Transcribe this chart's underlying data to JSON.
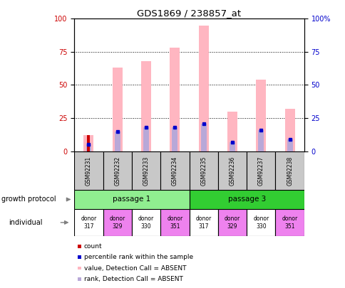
{
  "title": "GDS1869 / 238857_at",
  "samples": [
    "GSM92231",
    "GSM92232",
    "GSM92233",
    "GSM92234",
    "GSM92235",
    "GSM92236",
    "GSM92237",
    "GSM92238"
  ],
  "absent_value_bars": [
    12,
    63,
    68,
    78,
    95,
    30,
    54,
    32
  ],
  "absent_rank_bars": [
    5,
    15,
    18,
    18,
    21,
    7,
    16,
    9
  ],
  "red_count_bars": [
    12,
    0,
    0,
    0,
    0,
    0,
    0,
    0
  ],
  "blue_rank_dots": [
    5,
    15,
    18,
    18,
    21,
    7,
    16,
    9
  ],
  "passage_groups": [
    {
      "label": "passage 1",
      "start": 0,
      "end": 4,
      "color": "#90ee90"
    },
    {
      "label": "passage 3",
      "start": 4,
      "end": 8,
      "color": "#32cd32"
    }
  ],
  "individuals": [
    {
      "label": "donor\n317",
      "bg": "#ffffff"
    },
    {
      "label": "donor\n329",
      "bg": "#ee82ee"
    },
    {
      "label": "donor\n330",
      "bg": "#ffffff"
    },
    {
      "label": "donor\n351",
      "bg": "#ee82ee"
    },
    {
      "label": "donor\n317",
      "bg": "#ffffff"
    },
    {
      "label": "donor\n329",
      "bg": "#ee82ee"
    },
    {
      "label": "donor\n330",
      "bg": "#ffffff"
    },
    {
      "label": "donor\n351",
      "bg": "#ee82ee"
    }
  ],
  "ylim": [
    0,
    100
  ],
  "yticks": [
    0,
    25,
    50,
    75,
    100
  ],
  "left_color": "#cc0000",
  "right_color": "#0000cc",
  "pink_bar_color": "#ffb6c1",
  "lavender_color": "#b8a8d8",
  "red_color": "#cc0000",
  "blue_color": "#0000cc",
  "sample_bg": "#c8c8c8",
  "legend_items": [
    {
      "label": "count",
      "color": "#cc0000"
    },
    {
      "label": "percentile rank within the sample",
      "color": "#0000cc"
    },
    {
      "label": "value, Detection Call = ABSENT",
      "color": "#ffb6c1"
    },
    {
      "label": "rank, Detection Call = ABSENT",
      "color": "#b8a8d8"
    }
  ],
  "growth_protocol_label": "growth protocol",
  "individual_label": "individual"
}
